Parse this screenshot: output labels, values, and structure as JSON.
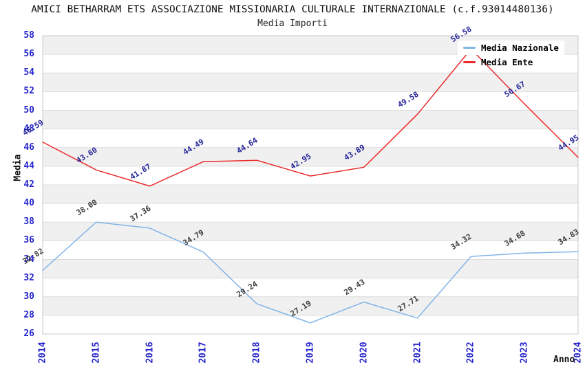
{
  "chart_data": {
    "type": "line",
    "title": "AMICI BETHARRAM ETS ASSOCIAZIONE MISSIONARIA CULTURALE INTERNAZIONALE (c.f.93014480136)",
    "subtitle": "Media Importi",
    "xlabel": "Anno",
    "ylabel": "Media",
    "categories": [
      "2014",
      "2015",
      "2016",
      "2017",
      "2018",
      "2019",
      "2020",
      "2021",
      "2022",
      "2023",
      "2024"
    ],
    "series": [
      {
        "name": "Media Nazionale",
        "color": "#82b4e8",
        "label_color": "#3c3c3c",
        "values": [
          32.82,
          38.0,
          37.36,
          34.79,
          29.24,
          27.19,
          29.43,
          27.71,
          34.32,
          34.68,
          34.83
        ]
      },
      {
        "name": "Media Ente",
        "color": "#ea2a2a",
        "label_color": "#242499",
        "values": [
          46.59,
          43.6,
          41.87,
          44.49,
          44.64,
          42.95,
          43.89,
          49.58,
          56.58,
          50.67,
          44.95
        ]
      }
    ],
    "ylim": [
      26,
      58
    ],
    "ytick_step": 2,
    "grid": "horizontal",
    "band_fill": [
      "#f0f0f0",
      "#ffffff"
    ],
    "gridline_color": "#dcdcdc",
    "border_color": "#c9c9c9",
    "tick_color": "#2424cc",
    "legend_position": "top-right",
    "data_label_decimals": 2
  }
}
